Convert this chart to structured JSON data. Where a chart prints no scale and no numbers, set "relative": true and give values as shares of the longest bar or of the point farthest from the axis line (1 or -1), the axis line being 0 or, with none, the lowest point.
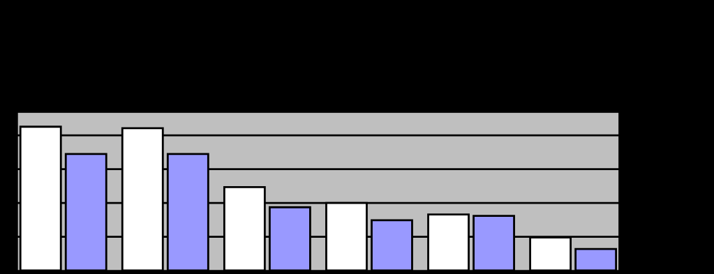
{
  "chart_data": {
    "type": "bar",
    "relative": true,
    "grid": "y",
    "categories": [
      null,
      null,
      null,
      null,
      null,
      null
    ],
    "series": [
      {
        "color": "#ffffff",
        "values": [
          1,
          0.99,
          0.58,
          0.47,
          0.39,
          0.23
        ]
      },
      {
        "color": "#9999ff",
        "values": [
          0.81,
          0.81,
          0.44,
          0.35,
          0.38,
          0.15
        ]
      }
    ]
  }
}
